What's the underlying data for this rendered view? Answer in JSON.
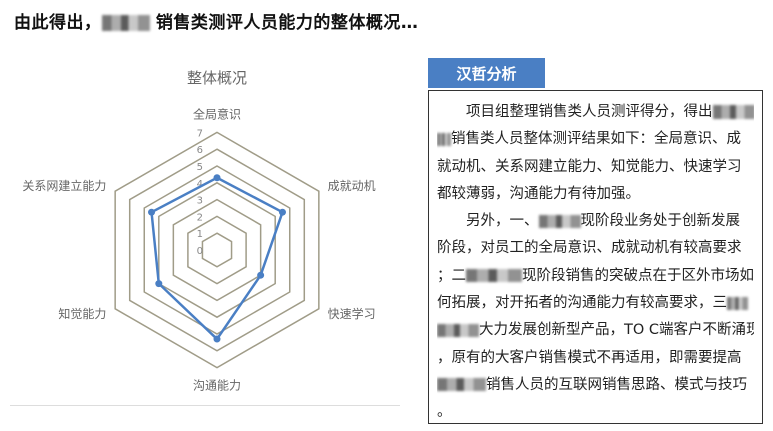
{
  "headline": {
    "before": "由此得出，",
    "after": " 销售类测评人员能力的整体概况…"
  },
  "analysis": {
    "tab_label": "汉哲分析",
    "lines": [
      [
        {
          "t": "　　项目组整理销售类人员测评得分，得出"
        },
        {
          "blur": 3
        }
      ],
      [
        {
          "blur": 1
        },
        {
          "t": "销售类人员整体测评结果如下：全局意识、成"
        }
      ],
      [
        {
          "t": "就动机、关系网建立能力、知觉能力、快速学习"
        }
      ],
      [
        {
          "t": "都较薄弱，沟通能力有待加强。"
        }
      ],
      [
        {
          "t": "　　另外，一、"
        },
        {
          "blur": 3
        },
        {
          "t": "现阶段业务处于创新发展"
        }
      ],
      [
        {
          "t": "阶段，对员工的全局意识、成就动机有较高要求"
        }
      ],
      [
        {
          "t": "；二"
        },
        {
          "blur": 4
        },
        {
          "t": "现阶段销售的突破点在于区外市场如"
        }
      ],
      [
        {
          "t": "何拓展，对开拓者的沟通能力有较高要求，三"
        },
        {
          "blur": 1.5
        }
      ],
      [
        {
          "blur": 3
        },
        {
          "t": "大力发展创新型产品，TO C端客户不断涌现"
        }
      ],
      [
        {
          "t": "，原有的大客户销售模式不再适用，即需要提高"
        }
      ],
      [
        {
          "blur": 3.5
        },
        {
          "t": "销售人员的互联网销售思路、模式与技巧"
        }
      ],
      [
        {
          "t": "。"
        }
      ]
    ]
  },
  "chart_data": {
    "type": "radar",
    "title": "整体概况",
    "categories": [
      "全局意识",
      "成就动机",
      "快速学习",
      "沟通能力",
      "知觉能力",
      "关系网建立能力"
    ],
    "values": [
      4.3,
      4.5,
      3.0,
      5.3,
      4.0,
      4.5
    ],
    "rlim": [
      0,
      7
    ],
    "ticks": [
      "0",
      "1",
      "2",
      "3",
      "4",
      "5",
      "6",
      "7"
    ],
    "series_color": "#4a7fc4",
    "grid_color": "#a09c88",
    "legend": "none"
  }
}
